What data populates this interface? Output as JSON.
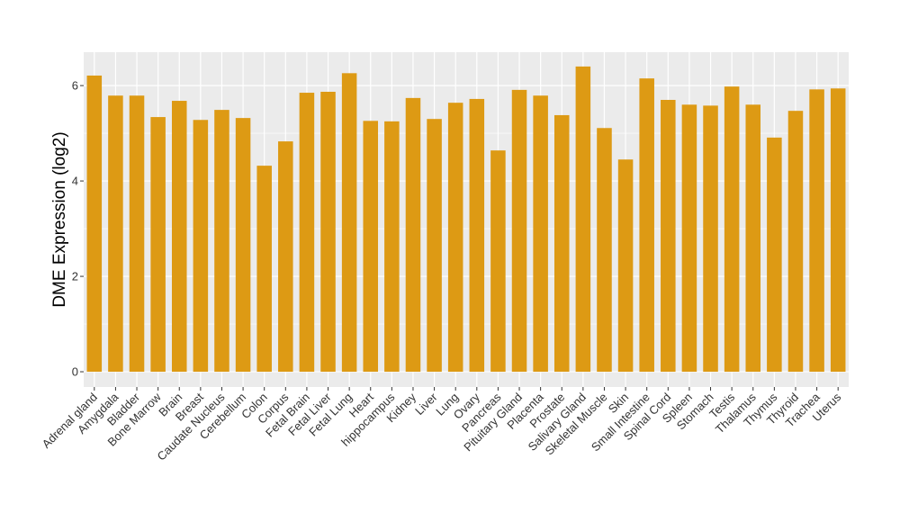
{
  "chart_data": {
    "type": "bar",
    "title": "",
    "xlabel": "",
    "ylabel": "DME Expression (log2)",
    "ylim": [
      -0.32,
      6.7
    ],
    "yticks": [
      0,
      2,
      4,
      6
    ],
    "grid": true,
    "bar_color": "#DD9A14",
    "panel_color": "#EBEBEB",
    "categories": [
      "Adrenal gland",
      "Amygdala",
      "Bladder",
      "Bone Marrow",
      "Brain",
      "Breast",
      "Caudate Nucleus",
      "Cerebellum",
      "Colon",
      "Corpus",
      "Fetal Brain",
      "Fetal Liver",
      "Fetal Lung",
      "Heart",
      "hippocampus",
      "Kidney",
      "Liver",
      "Lung",
      "Ovary",
      "Pancreas",
      "Pituitary Gland",
      "Placenta",
      "Prostate",
      "Salivary Gland",
      "Skeletal Muscle",
      "Skin",
      "Small Intestine",
      "Spinal Cord",
      "Spleen",
      "Stomach",
      "Testis",
      "Thalamus",
      "Thymus",
      "Thyroid",
      "Trachea",
      "Uterus"
    ],
    "values": [
      6.21,
      5.79,
      5.79,
      5.34,
      5.68,
      5.28,
      5.49,
      5.32,
      4.32,
      4.83,
      5.85,
      5.87,
      6.26,
      5.26,
      5.25,
      5.74,
      5.3,
      5.64,
      5.72,
      4.64,
      5.91,
      5.79,
      5.38,
      6.4,
      5.11,
      4.45,
      6.15,
      5.7,
      5.6,
      5.58,
      5.98,
      5.6,
      4.91,
      5.47,
      5.92,
      5.94
    ]
  }
}
